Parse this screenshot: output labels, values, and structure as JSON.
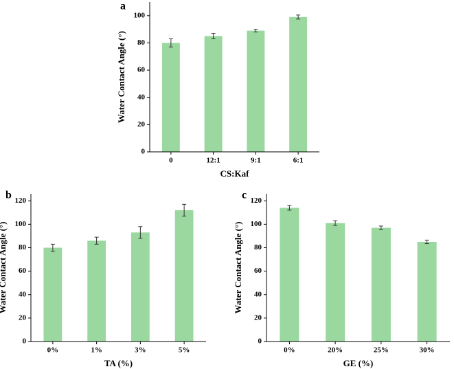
{
  "chart_data": [
    {
      "type": "bar",
      "panel_label": "a",
      "xlabel": "CS:Kaf",
      "ylabel": "Water Contact Angle (°)",
      "categories": [
        "0",
        "12:1",
        "9:1",
        "6:1"
      ],
      "values": [
        80,
        85,
        89,
        99
      ],
      "errors": [
        3,
        2,
        1,
        1.5
      ],
      "color": "#9ad8a0",
      "ylim": [
        0,
        110
      ],
      "yticks": [
        0,
        20,
        40,
        60,
        80,
        100
      ]
    },
    {
      "type": "bar",
      "panel_label": "b",
      "xlabel": "TA (%)",
      "ylabel": "Water Contact Angle (°)",
      "categories": [
        "0%",
        "1%",
        "3%",
        "5%"
      ],
      "values": [
        80,
        86,
        93,
        112
      ],
      "errors": [
        3,
        3,
        5,
        5
      ],
      "color": "#9ad8a0",
      "ylim": [
        0,
        126
      ],
      "yticks": [
        0,
        20,
        40,
        60,
        80,
        100,
        120
      ]
    },
    {
      "type": "bar",
      "panel_label": "c",
      "xlabel": "GE (%)",
      "ylabel": "Water Contact Angle (°)",
      "categories": [
        "0%",
        "20%",
        "25%",
        "30%"
      ],
      "values": [
        114,
        101,
        97,
        85
      ],
      "errors": [
        2,
        2,
        1.5,
        1.5
      ],
      "color": "#9ad8a0",
      "ylim": [
        0,
        126
      ],
      "yticks": [
        0,
        20,
        40,
        60,
        80,
        100,
        120
      ]
    }
  ]
}
